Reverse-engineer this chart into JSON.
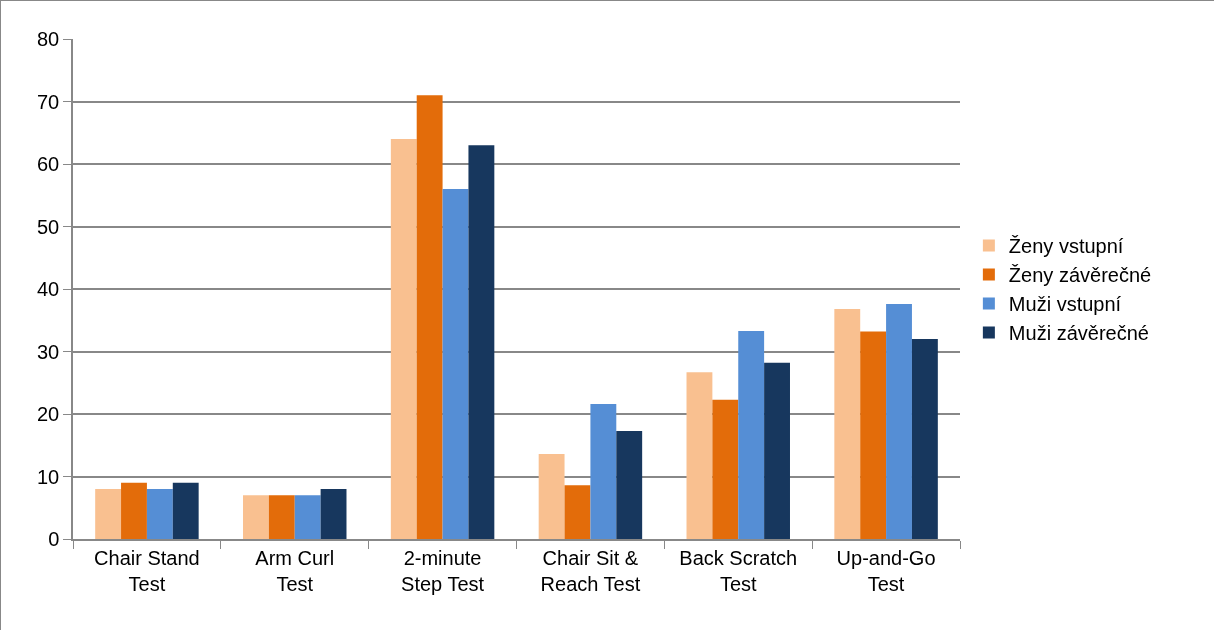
{
  "chart_data": {
    "type": "bar",
    "categories": [
      "Chair Stand\nTest",
      "Arm Curl\nTest",
      "2-minute\nStep Test",
      "Chair Sit &\nReach Test",
      "Back Scratch\nTest",
      "Up-and-Go\nTest"
    ],
    "series": [
      {
        "name": "Ženy vstupní",
        "color": "#f9c090",
        "values": [
          8,
          7,
          64,
          13.6,
          26.7,
          36.8
        ]
      },
      {
        "name": "Ženy závěrečné",
        "color": "#e36c0a",
        "values": [
          9,
          7,
          71,
          8.6,
          22.3,
          33.2
        ]
      },
      {
        "name": "Muži vstupní",
        "color": "#558ed5",
        "values": [
          8,
          7,
          56,
          21.6,
          33.3,
          37.6
        ]
      },
      {
        "name": "Muži závěrečné",
        "color": "#17375e",
        "values": [
          9,
          8,
          63,
          17.3,
          28.2,
          32.0
        ]
      }
    ],
    "ylim": [
      0,
      80
    ],
    "yticks": [
      0,
      10,
      20,
      30,
      40,
      50,
      60,
      70,
      80
    ],
    "grid": "y",
    "legend": "right"
  }
}
